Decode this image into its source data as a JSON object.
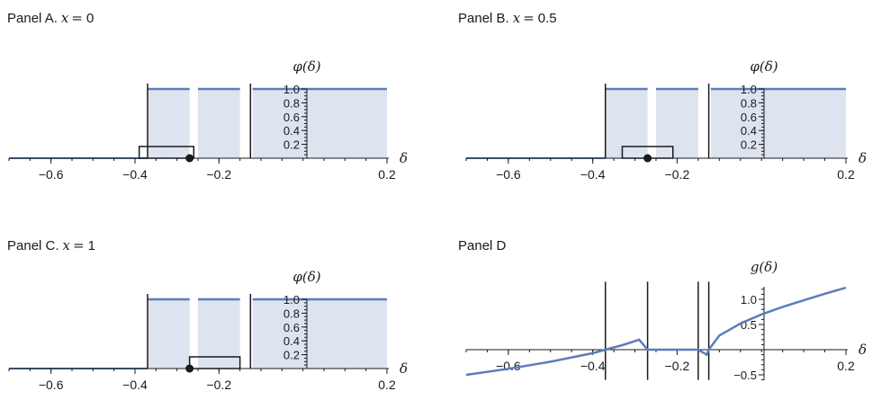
{
  "chart_data": [
    {
      "type": "area",
      "panel_label": "Panel A.",
      "panel_var": "x",
      "panel_val": "0",
      "xlim": [
        -0.7,
        0.2
      ],
      "ylim": [
        0,
        1
      ],
      "xticks": [
        -0.6,
        -0.4,
        -0.2,
        0.2
      ],
      "xtick_labels": [
        "−0.6",
        "−0.4",
        "−0.2",
        "0.2"
      ],
      "yticks": [
        0.2,
        0.4,
        0.6,
        0.8,
        1.0
      ],
      "ytick_labels": [
        "0.2",
        "0.4",
        "0.6",
        "0.8",
        "1.0"
      ],
      "xlabel": "δ",
      "ylabel": "φ(δ)",
      "shaded_intervals": [
        [
          -0.37,
          -0.27
        ],
        [
          -0.25,
          -0.15
        ],
        [
          -0.12,
          0.2
        ]
      ],
      "vertical_lines": [
        -0.37,
        -0.125
      ],
      "window": [
        -0.39,
        -0.26
      ],
      "point_x": -0.27
    },
    {
      "type": "area",
      "panel_label": "Panel B.",
      "panel_var": "x",
      "panel_val": "0.5",
      "xlim": [
        -0.7,
        0.2
      ],
      "ylim": [
        0,
        1
      ],
      "xticks": [
        -0.6,
        -0.4,
        -0.2,
        0.2
      ],
      "xtick_labels": [
        "−0.6",
        "−0.4",
        "−0.2",
        "0.2"
      ],
      "yticks": [
        0.2,
        0.4,
        0.6,
        0.8,
        1.0
      ],
      "ytick_labels": [
        "0.2",
        "0.4",
        "0.6",
        "0.8",
        "1.0"
      ],
      "xlabel": "δ",
      "ylabel": "φ(δ)",
      "shaded_intervals": [
        [
          -0.37,
          -0.27
        ],
        [
          -0.25,
          -0.15
        ],
        [
          -0.12,
          0.2
        ]
      ],
      "vertical_lines": [
        -0.37,
        -0.125
      ],
      "window": [
        -0.33,
        -0.21
      ],
      "point_x": -0.27
    },
    {
      "type": "area",
      "panel_label": "Panel C.",
      "panel_var": "x",
      "panel_val": "1",
      "xlim": [
        -0.7,
        0.2
      ],
      "ylim": [
        0,
        1
      ],
      "xticks": [
        -0.6,
        -0.4,
        -0.2,
        0.2
      ],
      "xtick_labels": [
        "−0.6",
        "−0.4",
        "−0.2",
        "0.2"
      ],
      "yticks": [
        0.2,
        0.4,
        0.6,
        0.8,
        1.0
      ],
      "ytick_labels": [
        "0.2",
        "0.4",
        "0.6",
        "0.8",
        "1.0"
      ],
      "xlabel": "δ",
      "ylabel": "φ(δ)",
      "shaded_intervals": [
        [
          -0.37,
          -0.27
        ],
        [
          -0.25,
          -0.15
        ],
        [
          -0.12,
          0.2
        ]
      ],
      "vertical_lines": [
        -0.37,
        -0.125
      ],
      "window": [
        -0.27,
        -0.15
      ],
      "point_x": -0.27
    },
    {
      "type": "line",
      "panel_label": "Panel D",
      "xlim": [
        -0.7,
        0.2
      ],
      "ylim": [
        -0.6,
        1.35
      ],
      "xticks": [
        -0.6,
        -0.4,
        -0.2,
        0.2
      ],
      "xtick_labels": [
        "−0.6",
        "−0.4",
        "−0.2",
        "0.2"
      ],
      "yticks": [
        -0.5,
        0.5,
        1.0
      ],
      "ytick_labels": [
        "−0.5",
        "0.5",
        "1.0"
      ],
      "xlabel": "δ",
      "ylabel": "g(δ)",
      "vertical_lines": [
        -0.37,
        -0.27,
        -0.15,
        -0.125
      ],
      "series": [
        {
          "x": [
            -0.7,
            -0.6,
            -0.5,
            -0.4,
            -0.37,
            -0.33,
            -0.3,
            -0.29,
            -0.27,
            -0.25,
            -0.2,
            -0.15,
            -0.14,
            -0.13,
            -0.125,
            -0.1,
            -0.05,
            0.0,
            0.05,
            0.1,
            0.15,
            0.2
          ],
          "y": [
            -0.5,
            -0.38,
            -0.24,
            -0.07,
            0.0,
            0.09,
            0.17,
            0.2,
            0.0,
            0.0,
            0.0,
            0.0,
            -0.05,
            -0.1,
            0.0,
            0.28,
            0.52,
            0.7,
            0.85,
            0.98,
            1.11,
            1.23
          ]
        }
      ]
    }
  ],
  "colors": {
    "line": "#5b7dbb",
    "fill": "#dde4f0",
    "axis": "#1a1a1a"
  }
}
